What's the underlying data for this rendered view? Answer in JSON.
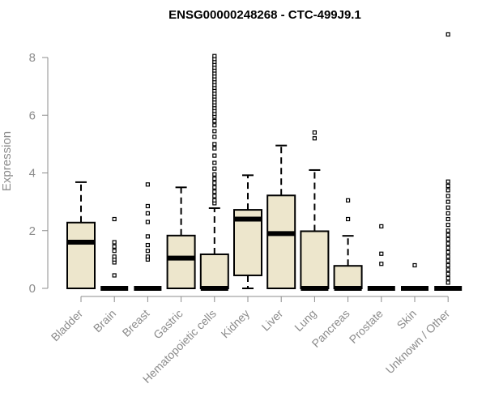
{
  "chart_data": {
    "type": "boxplot",
    "title": "ENSG00000248268 - CTC-499J9.1",
    "xlabel": "",
    "ylabel": "Expression",
    "ylim": [
      0,
      8
    ],
    "yticks": [
      0,
      2,
      4,
      6,
      8
    ],
    "box_color": "#ede6cc",
    "grid": false,
    "categories": [
      "Bladder",
      "Brain",
      "Breast",
      "Gastric",
      "Hematopoietic cells",
      "Kidney",
      "Liver",
      "Lung",
      "Pancreas",
      "Prostate",
      "Skin",
      "Unknown / Other"
    ],
    "boxes": [
      {
        "category": "Bladder",
        "whisker_low": 0,
        "q1": 0,
        "median": 1.6,
        "q3": 2.28,
        "whisker_high": 3.68,
        "outliers": []
      },
      {
        "category": "Brain",
        "whisker_low": 0,
        "q1": 0,
        "median": 0,
        "q3": 0,
        "whisker_high": 0,
        "outliers": [
          0.45,
          0.9,
          1.0,
          1.1,
          1.3,
          1.45,
          1.6,
          2.4
        ]
      },
      {
        "category": "Breast",
        "whisker_low": 0,
        "q1": 0,
        "median": 0,
        "q3": 0,
        "whisker_high": 0,
        "outliers": [
          1.0,
          1.1,
          1.3,
          1.5,
          1.8,
          2.3,
          2.6,
          2.85,
          3.6
        ]
      },
      {
        "category": "Gastric",
        "whisker_low": 0,
        "q1": 0,
        "median": 1.05,
        "q3": 1.83,
        "whisker_high": 3.5,
        "outliers": []
      },
      {
        "category": "Hematopoietic cells",
        "whisker_low": 0,
        "q1": 0,
        "median": 0,
        "q3": 1.18,
        "whisker_high": 2.78,
        "outliers": [
          2.95,
          3.05,
          3.2,
          3.35,
          3.5,
          3.65,
          3.8,
          3.95,
          4.15,
          4.35,
          4.6,
          4.85,
          5.0,
          5.25,
          5.45,
          5.65,
          5.8,
          5.95,
          6.05,
          6.15,
          6.25,
          6.35,
          6.45,
          6.55,
          6.65,
          6.75,
          6.85,
          6.95,
          7.05,
          7.15,
          7.25,
          7.35,
          7.45,
          7.55,
          7.65,
          7.75,
          7.85,
          7.95,
          8.05
        ]
      },
      {
        "category": "Kidney",
        "whisker_low": 0,
        "q1": 0.45,
        "median": 2.4,
        "q3": 2.72,
        "whisker_high": 3.92,
        "outliers": []
      },
      {
        "category": "Liver",
        "whisker_low": 0,
        "q1": 0,
        "median": 1.9,
        "q3": 3.22,
        "whisker_high": 4.95,
        "outliers": []
      },
      {
        "category": "Lung",
        "whisker_low": 0,
        "q1": 0,
        "median": 0,
        "q3": 1.98,
        "whisker_high": 4.1,
        "outliers": [
          5.2,
          5.4
        ]
      },
      {
        "category": "Pancreas",
        "whisker_low": 0,
        "q1": 0,
        "median": 0,
        "q3": 0.78,
        "whisker_high": 1.82,
        "outliers": [
          2.4,
          3.05
        ]
      },
      {
        "category": "Prostate",
        "whisker_low": 0,
        "q1": 0,
        "median": 0,
        "q3": 0,
        "whisker_high": 0,
        "outliers": [
          0.85,
          1.2,
          2.15
        ]
      },
      {
        "category": "Skin",
        "whisker_low": 0,
        "q1": 0,
        "median": 0,
        "q3": 0,
        "whisker_high": 0,
        "outliers": [
          0.8
        ]
      },
      {
        "category": "Unknown / Other",
        "whisker_low": 0,
        "q1": 0,
        "median": 0,
        "q3": 0,
        "whisker_high": 0,
        "outliers": [
          0.2,
          0.35,
          0.5,
          0.65,
          0.8,
          0.95,
          1.1,
          1.25,
          1.4,
          1.55,
          1.7,
          1.85,
          2.0,
          2.2,
          2.4,
          2.6,
          2.8,
          3.0,
          3.2,
          3.4,
          3.55,
          3.7,
          8.8
        ]
      }
    ]
  }
}
